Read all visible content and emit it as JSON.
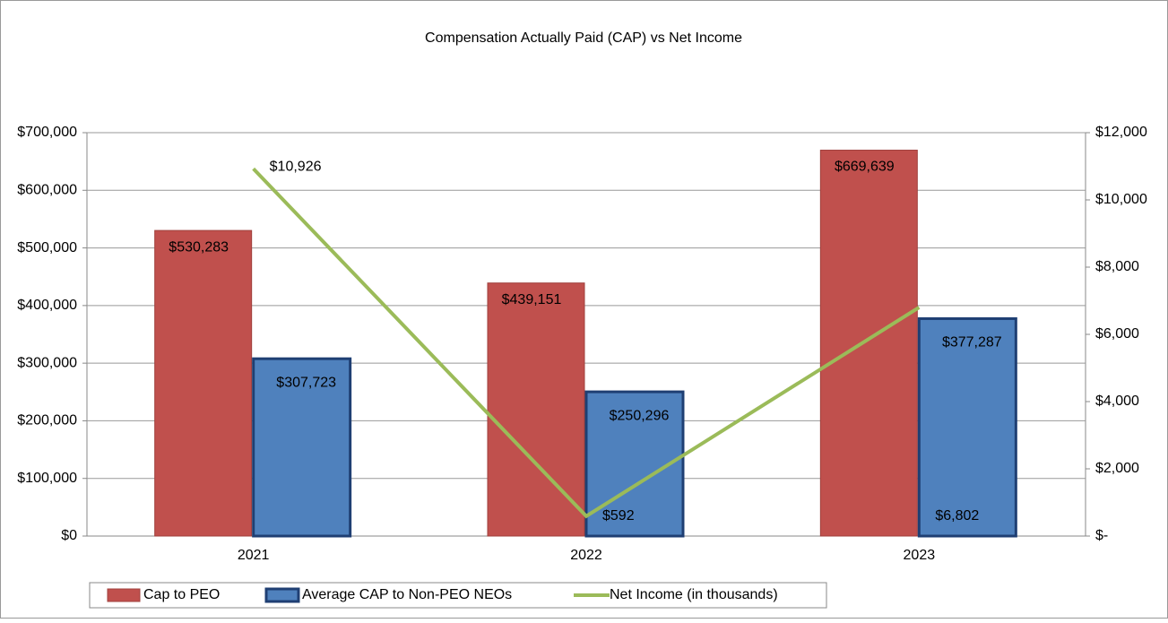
{
  "chart_data": {
    "type": "bar",
    "title": "Compensation Actually Paid (CAP) vs Net Income",
    "categories": [
      "2021",
      "2022",
      "2023"
    ],
    "series": [
      {
        "name": "Cap to PEO",
        "color": "#c0504d",
        "values": [
          530283,
          439151,
          669639
        ],
        "value_labels": [
          "$530,283",
          "$439,151",
          "$669,639"
        ]
      },
      {
        "name": "Average CAP to Non-PEO NEOs",
        "color": "#4f81bd",
        "values": [
          307723,
          250296,
          377287
        ],
        "value_labels": [
          "$307,723",
          "$250,296",
          "$377,287"
        ]
      },
      {
        "name": "Net Income (in thousands)",
        "color": "#9bbb59",
        "type": "line",
        "axis": "y2",
        "values": [
          10926,
          592,
          6802
        ],
        "value_labels": [
          "$10,926",
          "$592",
          "$6,802"
        ]
      }
    ],
    "ylim": [
      0,
      700000
    ],
    "yticks": [
      {
        "value": 0,
        "label": "$0"
      },
      {
        "value": 100000,
        "label": "$100,000"
      },
      {
        "value": 200000,
        "label": "$200,000"
      },
      {
        "value": 300000,
        "label": "$300,000"
      },
      {
        "value": 400000,
        "label": "$400,000"
      },
      {
        "value": 500000,
        "label": "$500,000"
      },
      {
        "value": 600000,
        "label": "$600,000"
      },
      {
        "value": 700000,
        "label": "$700,000"
      }
    ],
    "y2lim": [
      0,
      12000
    ],
    "y2ticks": [
      {
        "value": 0,
        "label": "$-"
      },
      {
        "value": 2000,
        "label": "$2,000"
      },
      {
        "value": 4000,
        "label": "$4,000"
      },
      {
        "value": 6000,
        "label": "$6,000"
      },
      {
        "value": 8000,
        "label": "$8,000"
      },
      {
        "value": 10000,
        "label": "$10,000"
      },
      {
        "value": 12000,
        "label": "$12,000"
      }
    ],
    "grid": true,
    "legend": "bottom"
  }
}
